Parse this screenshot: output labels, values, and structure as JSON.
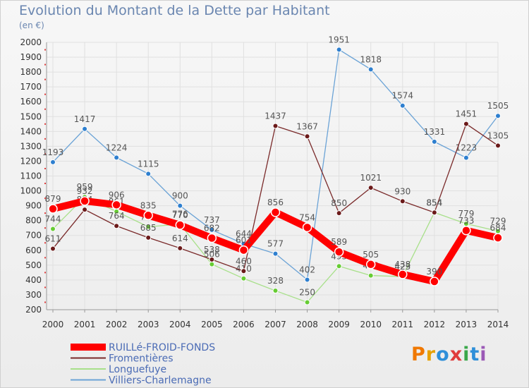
{
  "title": "Evolution du Montant de la Dette par Habitant",
  "subtitle": "(en €)",
  "logo": {
    "text": "Proxiti",
    "colors": [
      "#f07800",
      "#e6a000",
      "#2e8fd9",
      "#e03c3c",
      "#3aa84a",
      "#2e8fd9",
      "#9b59b6"
    ]
  },
  "chart_data": {
    "type": "line",
    "x": [
      "2000",
      "2001",
      "2002",
      "2003",
      "2004",
      "2005",
      "2006",
      "2007",
      "2008",
      "2009",
      "2010",
      "2011",
      "2012",
      "2013",
      "2014"
    ],
    "ylim": [
      200,
      2000
    ],
    "yticks": [
      200,
      300,
      400,
      500,
      600,
      700,
      800,
      900,
      1000,
      1100,
      1200,
      1300,
      1400,
      1500,
      1600,
      1700,
      1800,
      1900,
      2000
    ],
    "grid": true,
    "legend_position": "bottom-left",
    "series": [
      {
        "name": "Villiers-Charlemagne",
        "color": "#6ba3d6",
        "marker": "#2e7fcf",
        "values": [
          1193,
          1417,
          1224,
          1115,
          900,
          737,
          644,
          577,
          402,
          1951,
          1818,
          1574,
          1331,
          1223,
          1505
        ],
        "labels": [
          "1193",
          "1417",
          "1224",
          "1115",
          "900",
          "737",
          "644",
          "577",
          "402",
          "1951",
          "1818",
          "1574",
          "1331",
          "1223",
          "1505"
        ]
      },
      {
        "name": "Longuefuye",
        "color": "#a8e08a",
        "marker": "#66cc33",
        "values": [
          744,
          959,
          861,
          758,
          776,
          506,
          410,
          328,
          250,
          493,
          430,
          423,
          854,
          779,
          729
        ],
        "labels": [
          "744",
          "959",
          "861",
          "758",
          "776",
          "506",
          "410",
          "328",
          "250",
          "493",
          "430",
          "423",
          "854",
          "779",
          "729"
        ]
      },
      {
        "name": "Fromentières",
        "color": "#7a2a2a",
        "marker": "#6b1a1a",
        "values": [
          611,
          874,
          764,
          685,
          614,
          538,
          460,
          1437,
          1367,
          850,
          1021,
          930,
          854,
          1451,
          1305
        ],
        "labels": [
          "611",
          "874",
          "764",
          "685",
          "614",
          "538",
          "460",
          "1437",
          "1367",
          "850",
          "1021",
          "930",
          "854",
          "1451",
          "1305"
        ]
      },
      {
        "name": "RUILLé-FROID-FONDS",
        "color": "#ff0000",
        "marker": "#ff0000",
        "values": [
          879,
          932,
          906,
          835,
          770,
          682,
          601,
          856,
          754,
          589,
          505,
          438,
          390,
          733,
          684
        ],
        "labels": [
          "879",
          "932",
          "906",
          "835",
          "770",
          "682",
          "601",
          "856",
          "754",
          "589",
          "505",
          "438",
          "390",
          "733",
          "684"
        ]
      }
    ]
  }
}
